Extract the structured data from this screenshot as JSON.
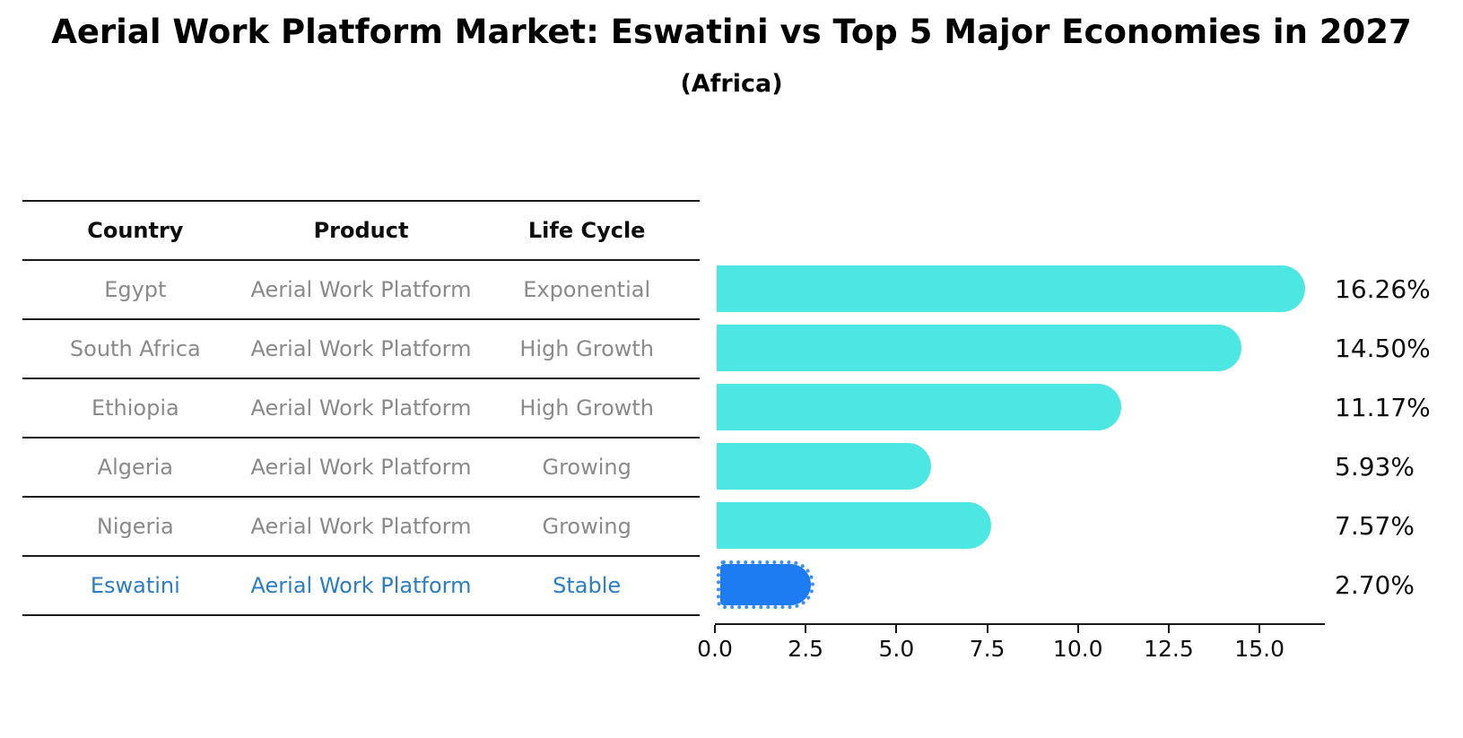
{
  "header": {
    "title": "Aerial Work Platform Market: Eswatini vs Top 5 Major Economies in 2027",
    "subtitle": "(Africa)"
  },
  "table": {
    "columns": [
      "Country",
      "Product",
      "Life Cycle"
    ],
    "rows": [
      {
        "country": "Egypt",
        "product": "Aerial Work Platform",
        "life_cycle": "Exponential",
        "highlight": false
      },
      {
        "country": "South Africa",
        "product": "Aerial Work Platform",
        "life_cycle": "High Growth",
        "highlight": false
      },
      {
        "country": "Ethiopia",
        "product": "Aerial Work Platform",
        "life_cycle": "High Growth",
        "highlight": false
      },
      {
        "country": "Algeria",
        "product": "Aerial Work Platform",
        "life_cycle": "Growing",
        "highlight": false
      },
      {
        "country": "Nigeria",
        "product": "Aerial Work Platform",
        "life_cycle": "Growing",
        "highlight": false
      },
      {
        "country": "Eswatini",
        "product": "Aerial Work Platform",
        "life_cycle": "Stable",
        "highlight": true
      }
    ]
  },
  "chart_data": {
    "type": "bar",
    "orientation": "horizontal",
    "categories": [
      "Egypt",
      "South Africa",
      "Ethiopia",
      "Algeria",
      "Nigeria",
      "Eswatini"
    ],
    "values": [
      16.26,
      14.5,
      11.17,
      5.93,
      7.57,
      2.7
    ],
    "value_labels": [
      "16.26%",
      "14.50%",
      "11.17%",
      "5.93%",
      "7.57%",
      "2.70%"
    ],
    "highlight_index": 5,
    "xlim": [
      0,
      16.8
    ],
    "xticks": [
      0.0,
      2.5,
      5.0,
      7.5,
      10.0,
      12.5,
      15.0
    ],
    "xtick_labels": [
      "0.0",
      "2.5",
      "5.0",
      "7.5",
      "10.0",
      "12.5",
      "15.0"
    ],
    "grid": false,
    "legend": null,
    "bar_color": "#4de7e3",
    "highlight_bar_color": "#1d7cf2",
    "row_text_color": "#8a8a8a",
    "highlight_text_color": "#2b7dc7"
  }
}
